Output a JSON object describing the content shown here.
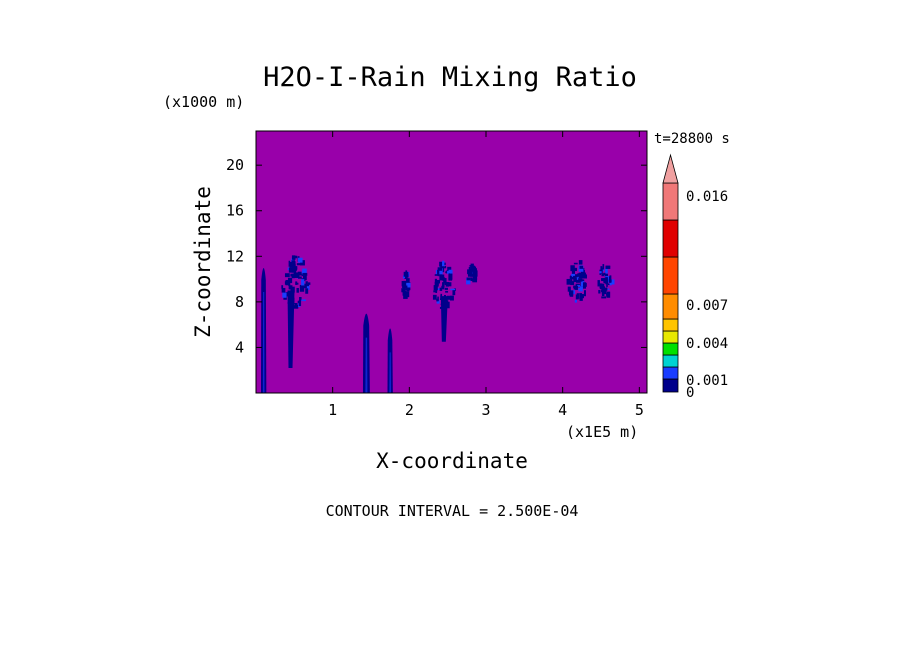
{
  "chart_data": {
    "type": "heatmap",
    "title": "H2O-I-Rain Mixing Ratio",
    "xlabel": "X-coordinate",
    "ylabel": "Z-coordinate",
    "x_unit": "(x1E5 m)",
    "y_unit": "(x1000 m)",
    "time_label": "t=28800 s",
    "footer": "CONTOUR INTERVAL = 2.500E-04",
    "xlim": [
      0,
      5.1
    ],
    "ylim": [
      0,
      23
    ],
    "x_ticks": [
      1,
      2,
      3,
      4,
      5
    ],
    "y_ticks": [
      4,
      8,
      12,
      16,
      20
    ],
    "background_color": "#9900aa",
    "colorbar": {
      "labels": [
        {
          "text": "0.016",
          "value": 0.016
        },
        {
          "text": "0.007",
          "value": 0.007
        },
        {
          "text": "0.004",
          "value": 0.004
        },
        {
          "text": "0.001",
          "value": 0.001
        },
        {
          "text": "0",
          "value": 0
        }
      ],
      "levels": [
        {
          "upper": 0.00025,
          "color": "#00008b"
        },
        {
          "upper": 0.0005,
          "color": "#1a3dff"
        },
        {
          "upper": 0.001,
          "color": "#00d2d2"
        },
        {
          "upper": 0.002,
          "color": "#00e000"
        },
        {
          "upper": 0.003,
          "color": "#e8e800"
        },
        {
          "upper": 0.004,
          "color": "#ffc400"
        },
        {
          "upper": 0.007,
          "color": "#ff8c00"
        },
        {
          "upper": 0.01,
          "color": "#ff4500"
        },
        {
          "upper": 0.013,
          "color": "#e00000"
        },
        {
          "upper": 0.016,
          "color": "#f07878"
        },
        {
          "upper": 0.02,
          "color": "#f0a0a0",
          "arrow": true
        }
      ]
    },
    "features": [
      {
        "type": "column",
        "x": 0.1,
        "z0": 0,
        "z1": 11.5,
        "w": 0.07
      },
      {
        "type": "column",
        "x": 1.44,
        "z0": 0,
        "z1": 7.5,
        "w": 0.09
      },
      {
        "type": "column",
        "x": 1.75,
        "z0": 0,
        "z1": 6.2,
        "w": 0.07
      },
      {
        "type": "blob",
        "x": 0.52,
        "z": 9.6,
        "rx": 0.18,
        "rz": 2.4
      },
      {
        "type": "streak",
        "x": 0.45,
        "z0": 2.2,
        "z1": 9.0
      },
      {
        "type": "blob",
        "x": 1.95,
        "z": 9.6,
        "rx": 0.05,
        "rz": 1.2
      },
      {
        "type": "blob",
        "x": 2.45,
        "z": 9.4,
        "rx": 0.16,
        "rz": 2.0
      },
      {
        "type": "streak",
        "x": 2.45,
        "z0": 4.5,
        "z1": 8.5
      },
      {
        "type": "blob",
        "x": 2.82,
        "z": 10.3,
        "rx": 0.06,
        "rz": 1.0
      },
      {
        "type": "blob",
        "x": 4.2,
        "z": 9.8,
        "rx": 0.13,
        "rz": 1.8
      },
      {
        "type": "blob",
        "x": 4.55,
        "z": 9.8,
        "rx": 0.1,
        "rz": 1.6
      }
    ]
  }
}
